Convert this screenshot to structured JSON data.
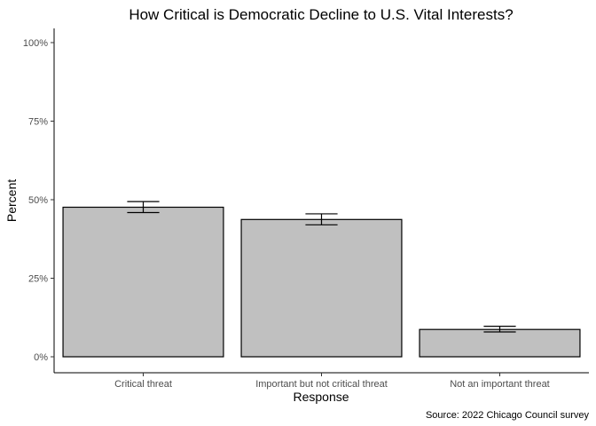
{
  "chart_data": {
    "type": "bar",
    "title": "How Critical is Democratic Decline to U.S. Vital Interests?",
    "xlabel": "Response",
    "ylabel": "Percent",
    "caption": "Source: 2022 Chicago Council survey",
    "categories": [
      "Critical threat",
      "Important but not critical threat",
      "Not an important threat"
    ],
    "values": [
      47.6,
      43.7,
      8.7
    ],
    "error_low": [
      45.9,
      42.0,
      7.9
    ],
    "error_high": [
      49.4,
      45.5,
      9.7
    ],
    "ylim": [
      0,
      100
    ],
    "yticks": [
      0,
      25,
      50,
      75,
      100
    ],
    "ytick_labels": [
      "0%",
      "25%",
      "50%",
      "75%",
      "100%"
    ],
    "grid": false,
    "legend": "none",
    "colors": {
      "bar_fill": "#c0c0c0",
      "bar_stroke": "#000000",
      "axis": "#000000",
      "tick_label": "#4d4d4d"
    }
  }
}
